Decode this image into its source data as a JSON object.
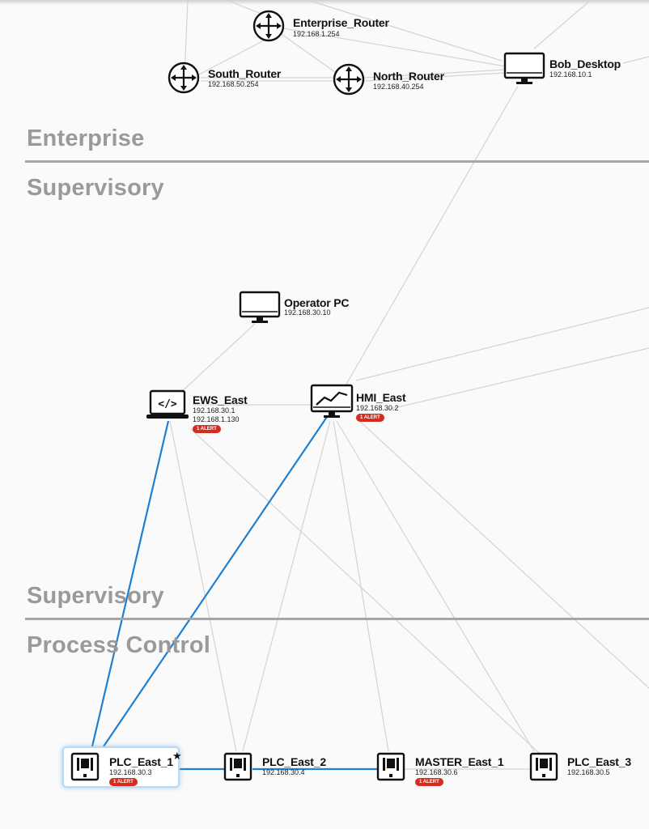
{
  "zones": {
    "enterprise": "Enterprise",
    "supervisory_top": "Supervisory",
    "supervisory_bottom": "Supervisory",
    "process_control": "Process Control"
  },
  "nodes": {
    "enterprise_router": {
      "name": "Enterprise_Router",
      "ip": "192.168.1.254",
      "icon": "router-icon"
    },
    "south_router": {
      "name": "South_Router",
      "ip": "192.168.50.254",
      "icon": "router-icon"
    },
    "north_router": {
      "name": "North_Router",
      "ip": "192.168.40.254",
      "icon": "router-icon"
    },
    "bob_desktop": {
      "name": "Bob_Desktop",
      "ip": "192.168.10.1",
      "icon": "desktop-icon"
    },
    "operator_pc": {
      "name": "Operator PC",
      "ip": "192.168.30.10",
      "icon": "desktop-icon"
    },
    "ews_east": {
      "name": "EWS_East",
      "ip": "192.168.30.1",
      "ip2": "192.168.1.130",
      "alert": "1 ALERT",
      "icon": "laptop-code-icon"
    },
    "hmi_east": {
      "name": "HMI_East",
      "ip": "192.168.30.2",
      "alert": "1 ALERT",
      "icon": "hmi-chart-icon"
    },
    "plc_east_1": {
      "name": "PLC_East_1",
      "ip": "192.168.30.3",
      "alert": "1 ALERT",
      "star": "★",
      "icon": "plc-icon"
    },
    "plc_east_2": {
      "name": "PLC_East_2",
      "ip": "192.168.30.4",
      "icon": "plc-icon"
    },
    "master_east_1": {
      "name": "MASTER_East_1",
      "ip": "192.168.30.6",
      "alert": "1 ALERT",
      "icon": "plc-icon"
    },
    "plc_east_3": {
      "name": "PLC_East_3",
      "ip": "192.168.30.5",
      "icon": "plc-icon"
    }
  },
  "colors": {
    "highlight_edge": "#1f7fd1",
    "normal_edge": "#d3d3d3",
    "alert_badge": "#d62b1f",
    "zone_label": "#9a9a9a"
  }
}
